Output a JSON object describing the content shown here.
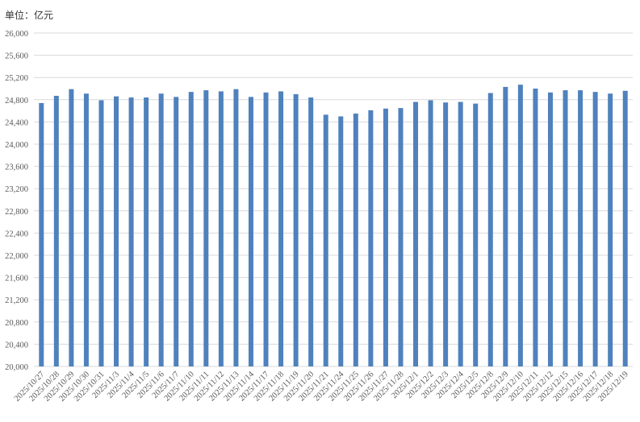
{
  "unit_label": "单位：亿元",
  "chart_data": {
    "type": "bar",
    "title": "",
    "xlabel": "",
    "ylabel": "",
    "ylim": [
      20000,
      26000
    ],
    "ytick_step": 400,
    "grid": true,
    "bar_color": "#4f81bd",
    "grid_color": "#d9d9d9",
    "categories": [
      "2025/10/27",
      "2025/10/28",
      "2025/10/29",
      "2025/10/30",
      "2025/10/31",
      "2025/11/3",
      "2025/11/4",
      "2025/11/5",
      "2025/11/6",
      "2025/11/7",
      "2025/11/10",
      "2025/11/11",
      "2025/11/12",
      "2025/11/13",
      "2025/11/14",
      "2025/11/17",
      "2025/11/18",
      "2025/11/19",
      "2025/11/20",
      "2025/11/21",
      "2025/11/24",
      "2025/11/25",
      "2025/11/26",
      "2025/11/27",
      "2025/11/28",
      "2025/12/1",
      "2025/12/2",
      "2025/12/3",
      "2025/12/4",
      "2025/12/5",
      "2025/12/8",
      "2025/12/9",
      "2025/12/10",
      "2025/12/11",
      "2025/12/12",
      "2025/12/15",
      "2025/12/16",
      "2025/12/17",
      "2025/12/18",
      "2025/12/19"
    ],
    "values": [
      24740,
      24870,
      24990,
      24910,
      24790,
      24860,
      24840,
      24840,
      24910,
      24850,
      24940,
      24970,
      24950,
      24990,
      24850,
      24930,
      24950,
      24900,
      24840,
      24530,
      24500,
      24550,
      24610,
      24640,
      24650,
      24760,
      24790,
      24750,
      24760,
      24730,
      24920,
      25030,
      25070,
      25000,
      24930,
      24970,
      24970,
      24940,
      24910,
      24960
    ]
  }
}
